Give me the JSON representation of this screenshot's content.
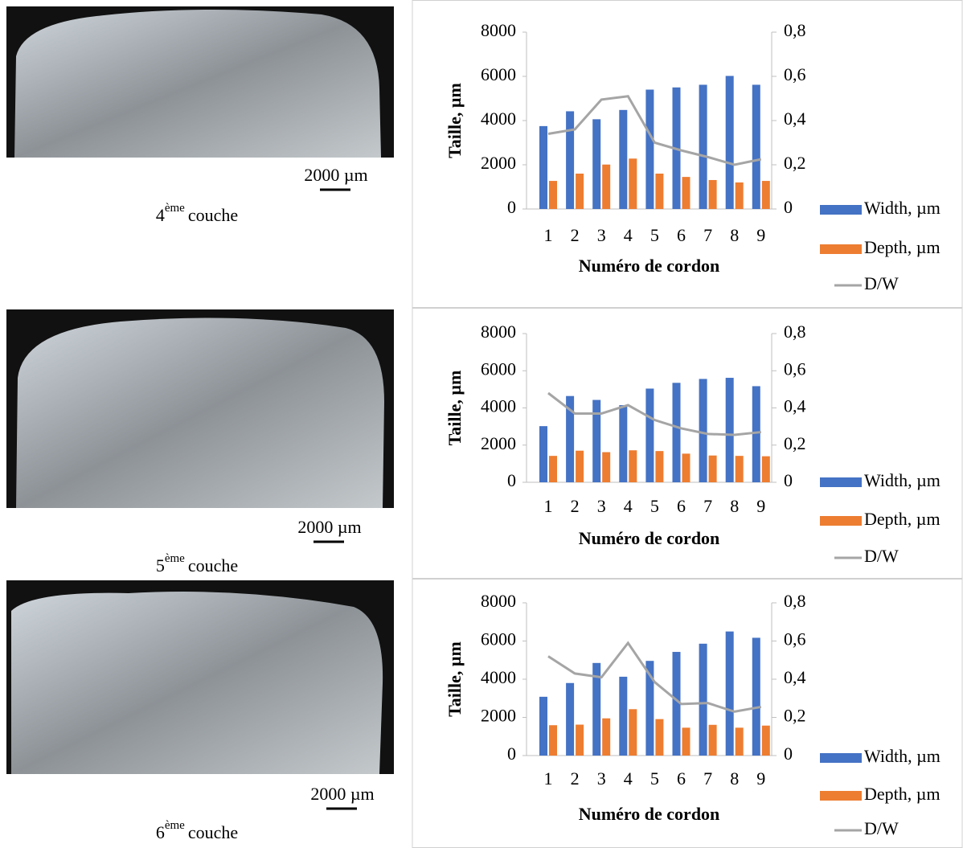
{
  "images": [
    {
      "scale_label": "2000 µm",
      "caption_number": "4",
      "caption_sup": "ème",
      "caption_text": "couche"
    },
    {
      "scale_label": "2000 µm",
      "caption_number": "5",
      "caption_sup": "ème",
      "caption_text": "couche"
    },
    {
      "scale_label": "2000 µm",
      "caption_number": "6",
      "caption_sup": "ème",
      "caption_text": "couche"
    }
  ],
  "chart_data": [
    {
      "type": "bar-line",
      "y_label": "Taille, µm",
      "x_label": "Numéro de cordon",
      "categories": [
        "1",
        "2",
        "3",
        "4",
        "5",
        "6",
        "7",
        "8",
        "9"
      ],
      "series": [
        {
          "name": "Width, µm",
          "color": "#4472c4",
          "type": "bar",
          "values": [
            3750,
            4420,
            4060,
            4480,
            5400,
            5500,
            5620,
            6020,
            5620
          ]
        },
        {
          "name": "Depth, µm",
          "color": "#ed7d31",
          "type": "bar",
          "values": [
            1270,
            1600,
            2010,
            2280,
            1600,
            1450,
            1310,
            1200,
            1270
          ]
        },
        {
          "name": "D/W",
          "color": "#a5a5a5",
          "type": "line",
          "axis": "y2",
          "values": [
            0.34,
            0.36,
            0.495,
            0.51,
            0.3,
            0.265,
            0.235,
            0.2,
            0.225
          ]
        }
      ],
      "ylim": [
        0,
        8000
      ],
      "yticks": [
        0,
        2000,
        4000,
        6000,
        8000
      ],
      "y2lim": [
        0,
        0.8
      ],
      "y2ticks": [
        0,
        {
          "value": 0.2,
          "label": "0,2"
        },
        {
          "value": 0.4,
          "label": "0,4"
        },
        {
          "value": 0.6,
          "label": "0,6"
        },
        {
          "value": 0.8,
          "label": "0,8"
        }
      ],
      "grid": false,
      "legend": "right"
    },
    {
      "type": "bar-line",
      "y_label": "Taille, µm",
      "x_label": "Numéro de cordon",
      "categories": [
        "1",
        "2",
        "3",
        "4",
        "5",
        "6",
        "7",
        "8",
        "9"
      ],
      "series": [
        {
          "name": "Width, µm",
          "color": "#4472c4",
          "type": "bar",
          "values": [
            3020,
            4640,
            4430,
            4150,
            5040,
            5350,
            5560,
            5620,
            5170
          ]
        },
        {
          "name": "Depth, µm",
          "color": "#ed7d31",
          "type": "bar",
          "values": [
            1420,
            1700,
            1620,
            1720,
            1680,
            1540,
            1440,
            1420,
            1400
          ]
        },
        {
          "name": "D/W",
          "color": "#a5a5a5",
          "type": "line",
          "axis": "y2",
          "values": [
            0.48,
            0.37,
            0.37,
            0.415,
            0.335,
            0.29,
            0.26,
            0.255,
            0.27
          ]
        }
      ],
      "ylim": [
        0,
        8000
      ],
      "yticks": [
        0,
        2000,
        4000,
        6000,
        8000
      ],
      "y2lim": [
        0,
        0.8
      ],
      "y2ticks": [
        0,
        {
          "value": 0.2,
          "label": "0,2"
        },
        {
          "value": 0.4,
          "label": "0,4"
        },
        {
          "value": 0.6,
          "label": "0,6"
        },
        {
          "value": 0.8,
          "label": "0,8"
        }
      ],
      "grid": false,
      "legend": "right"
    },
    {
      "type": "bar-line",
      "y_label": "Taille, µm",
      "x_label": "Numéro de cordon",
      "categories": [
        "1",
        "2",
        "3",
        "4",
        "5",
        "6",
        "7",
        "8",
        "9"
      ],
      "series": [
        {
          "name": "Width, µm",
          "color": "#4472c4",
          "type": "bar",
          "values": [
            3080,
            3800,
            4850,
            4130,
            4960,
            5430,
            5860,
            6500,
            6170
          ]
        },
        {
          "name": "Depth, µm",
          "color": "#ed7d31",
          "type": "bar",
          "values": [
            1590,
            1620,
            1950,
            2430,
            1910,
            1460,
            1610,
            1460,
            1570
          ]
        },
        {
          "name": "D/W",
          "color": "#a5a5a5",
          "type": "line",
          "axis": "y2",
          "values": [
            0.52,
            0.43,
            0.41,
            0.59,
            0.385,
            0.27,
            0.275,
            0.23,
            0.255
          ]
        }
      ],
      "ylim": [
        0,
        8000
      ],
      "yticks": [
        0,
        2000,
        4000,
        6000,
        8000
      ],
      "y2lim": [
        0,
        0.8
      ],
      "y2ticks": [
        0,
        {
          "value": 0.2,
          "label": "0,2"
        },
        {
          "value": 0.4,
          "label": "0,4"
        },
        {
          "value": 0.6,
          "label": "0,6"
        },
        {
          "value": 0.8,
          "label": "0,8"
        }
      ],
      "grid": false,
      "legend": "right"
    }
  ]
}
